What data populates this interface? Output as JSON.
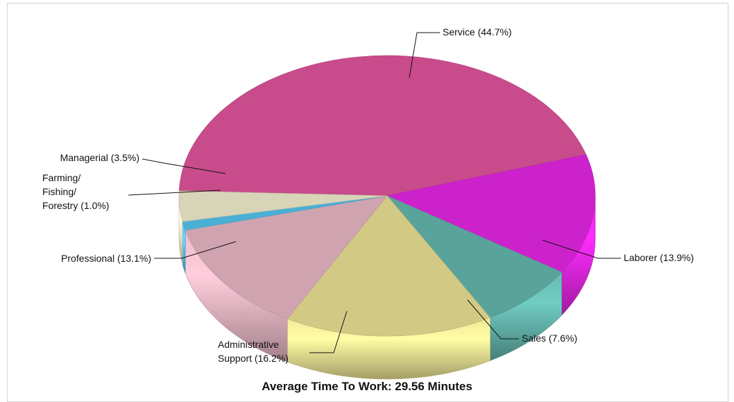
{
  "chart_data": {
    "type": "pie",
    "style": "3d",
    "title": "Average Time To Work: 29.56 Minutes",
    "legend": "none",
    "slices": [
      {
        "label": "Service (44.7%)",
        "lines": [
          "Service (44.7%)"
        ],
        "value": 44.7,
        "color": "#c84b8b"
      },
      {
        "label": "Laborer (13.9%)",
        "lines": [
          "Laborer (13.9%)"
        ],
        "value": 13.9,
        "color": "#cc22cc"
      },
      {
        "label": "Sales (7.6%)",
        "lines": [
          "Sales (7.6%)"
        ],
        "value": 7.6,
        "color": "#5aa39b"
      },
      {
        "label": "Administrative Support (16.2%)",
        "lines": [
          "Administrative",
          "Support (16.2%)"
        ],
        "value": 16.2,
        "color": "#d2ca84"
      },
      {
        "label": "Professional (13.1%)",
        "lines": [
          "Professional (13.1%)"
        ],
        "value": 13.1,
        "color": "#cfa4b0"
      },
      {
        "label": "Farming/ Fishing/ Forestry (1.0%)",
        "lines": [
          "Farming/",
          "Fishing/",
          "Forestry (1.0%)"
        ],
        "value": 1.0,
        "color": "#4ab0d6"
      },
      {
        "label": "Managerial (3.5%)",
        "lines": [
          "Managerial (3.5%)"
        ],
        "value": 3.5,
        "color": "#d8d4b8"
      }
    ]
  }
}
